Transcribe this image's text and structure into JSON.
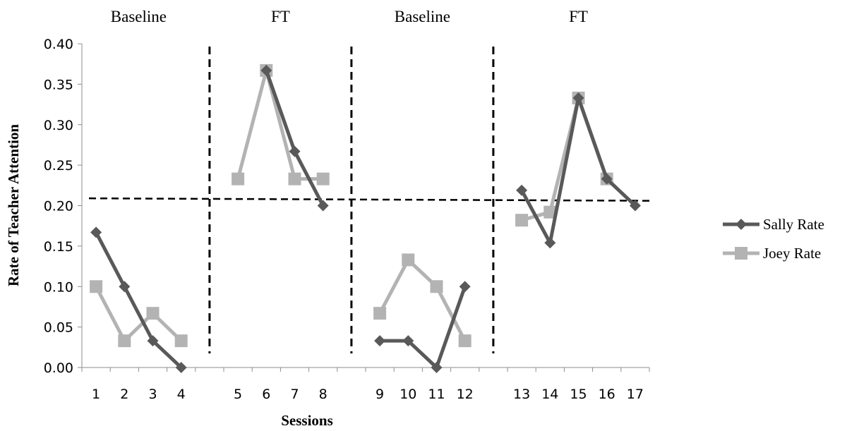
{
  "chart_data": {
    "type": "line",
    "xlabel": "Sessions",
    "ylabel": "Rate of Teacher Attention",
    "ylim": [
      0,
      0.4
    ],
    "yticks": [
      "0.00",
      "0.05",
      "0.10",
      "0.15",
      "0.20",
      "0.25",
      "0.30",
      "0.35",
      "0.40"
    ],
    "categories": [
      "1",
      "2",
      "3",
      "4",
      "",
      "5",
      "6",
      "7",
      "8",
      "",
      "9",
      "10",
      "11",
      "12",
      "",
      "13",
      "14",
      "15",
      "16",
      "17"
    ],
    "phases": [
      "Baseline",
      "FT",
      "Baseline",
      "FT"
    ],
    "series": [
      {
        "name": "Sally Rate",
        "color": "#595959",
        "marker": "diamond",
        "values": [
          0.167,
          0.1,
          0.033,
          0.0,
          null,
          null,
          0.367,
          0.267,
          0.2,
          null,
          0.033,
          0.033,
          0.0,
          0.1,
          null,
          0.219,
          0.154,
          0.333,
          0.233,
          0.2
        ]
      },
      {
        "name": "Joey Rate",
        "color": "#b3b3b3",
        "marker": "square",
        "values": [
          0.1,
          0.033,
          0.067,
          0.033,
          null,
          0.233,
          0.367,
          0.233,
          0.233,
          null,
          0.067,
          0.133,
          0.1,
          0.033,
          null,
          0.182,
          0.192,
          0.333,
          0.233,
          null
        ]
      }
    ],
    "criterion_line": {
      "start": 0.209,
      "end": 0.206
    },
    "legend_position": "right",
    "grid": false
  }
}
